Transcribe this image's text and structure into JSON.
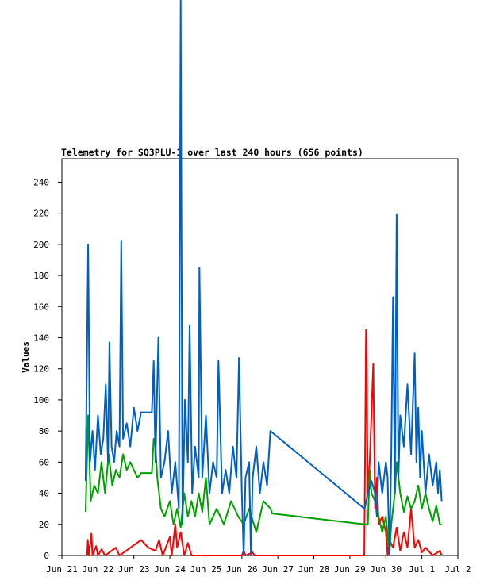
{
  "chart_data": {
    "type": "line",
    "title": "Telemetry for SQ3PLU-1 over last 240 hours (656 points)",
    "ylabel": "Values",
    "xlim": [
      0,
      11
    ],
    "xticks": [
      {
        "value": 0,
        "label": "Jun 21"
      },
      {
        "value": 1,
        "label": "Jun 22"
      },
      {
        "value": 2,
        "label": "Jun 23"
      },
      {
        "value": 3,
        "label": "Jun 24"
      },
      {
        "value": 4,
        "label": "Jun 25"
      },
      {
        "value": 5,
        "label": "Jun 26"
      },
      {
        "value": 6,
        "label": "Jun 27"
      },
      {
        "value": 7,
        "label": "Jun 28"
      },
      {
        "value": 8,
        "label": "Jun 29"
      },
      {
        "value": 9,
        "label": "Jun 30"
      },
      {
        "value": 10,
        "label": "Jul 1"
      },
      {
        "value": 11,
        "label": "Jul 2"
      }
    ],
    "ylim": [
      0,
      255
    ],
    "yticks": [
      0,
      20,
      40,
      60,
      80,
      100,
      120,
      140,
      160,
      180,
      200,
      220,
      240
    ],
    "grid": false,
    "series": [
      {
        "color": "#ff0000",
        "x": [
          0.7,
          0.72,
          0.75,
          0.82,
          0.85,
          0.95,
          1.0,
          1.1,
          1.2,
          1.5,
          1.6,
          2.2,
          2.4,
          2.6,
          2.7,
          2.8,
          3.0,
          3.05,
          3.15,
          3.2,
          3.3,
          3.4,
          3.5,
          3.6,
          5.0,
          5.05,
          5.1,
          5.3,
          5.35,
          8.4,
          8.45,
          8.5,
          8.55,
          8.65,
          8.7,
          8.75,
          8.8,
          8.9,
          9.0,
          9.05,
          9.1,
          9.2,
          9.3,
          9.4,
          9.5,
          9.6,
          9.7,
          9.8,
          9.9,
          10.0,
          10.1,
          10.3,
          10.5,
          10.55
        ],
        "values": [
          0,
          10,
          0,
          14,
          0,
          6,
          0,
          4,
          0,
          5,
          0,
          10,
          5,
          3,
          10,
          0,
          12,
          0,
          20,
          5,
          15,
          0,
          8,
          0,
          0,
          3,
          0,
          2,
          0,
          0,
          145,
          40,
          60,
          123,
          30,
          50,
          20,
          25,
          15,
          0,
          10,
          5,
          18,
          3,
          15,
          5,
          30,
          5,
          10,
          2,
          5,
          0,
          3,
          0
        ]
      },
      {
        "color": "#00a000",
        "x": [
          0.66,
          0.73,
          0.8,
          0.9,
          1.0,
          1.1,
          1.2,
          1.3,
          1.4,
          1.5,
          1.6,
          1.7,
          1.8,
          1.9,
          2.0,
          2.1,
          2.2,
          2.5,
          2.55,
          2.6,
          2.65,
          2.75,
          2.85,
          3.0,
          3.1,
          3.2,
          3.3,
          3.4,
          3.5,
          3.6,
          3.7,
          3.8,
          3.9,
          4.0,
          4.1,
          4.3,
          4.5,
          4.7,
          4.9,
          5.05,
          5.2,
          5.4,
          5.6,
          5.8,
          5.84,
          8.41,
          8.5,
          8.55,
          8.6,
          8.7,
          8.8,
          8.9,
          9.0,
          9.1,
          9.15,
          9.25,
          9.3,
          9.4,
          9.5,
          9.6,
          9.7,
          9.8,
          9.9,
          10.0,
          10.1,
          10.2,
          10.3,
          10.4,
          10.5,
          10.55
        ],
        "values": [
          28,
          90,
          35,
          45,
          40,
          60,
          40,
          65,
          45,
          55,
          50,
          65,
          55,
          60,
          55,
          50,
          53,
          53,
          75,
          70,
          50,
          30,
          25,
          35,
          20,
          30,
          18,
          40,
          25,
          35,
          25,
          40,
          28,
          50,
          20,
          30,
          20,
          35,
          25,
          20,
          30,
          15,
          35,
          30,
          27,
          20,
          20,
          55,
          40,
          35,
          25,
          15,
          25,
          0,
          20,
          40,
          60,
          40,
          28,
          38,
          30,
          35,
          45,
          30,
          40,
          30,
          22,
          32,
          20,
          20
        ]
      },
      {
        "color": "#0060c0",
        "x": [
          0.66,
          0.73,
          0.78,
          0.85,
          0.92,
          1.0,
          1.08,
          1.15,
          1.22,
          1.28,
          1.32,
          1.38,
          1.45,
          1.52,
          1.6,
          1.65,
          1.7,
          1.8,
          1.9,
          2.0,
          2.1,
          2.2,
          2.5,
          2.55,
          2.6,
          2.68,
          2.75,
          2.85,
          2.95,
          3.05,
          3.15,
          3.25,
          3.3,
          3.35,
          3.42,
          3.5,
          3.55,
          3.62,
          3.7,
          3.8,
          3.82,
          3.9,
          4.0,
          4.1,
          4.2,
          4.3,
          4.35,
          4.45,
          4.55,
          4.65,
          4.75,
          4.85,
          4.92,
          5.0,
          5.05,
          5.1,
          5.2,
          5.25,
          5.3,
          5.4,
          5.5,
          5.6,
          5.7,
          5.79,
          8.41,
          8.5,
          8.6,
          8.7,
          8.75,
          8.8,
          8.9,
          9.0,
          9.05,
          9.1,
          9.15,
          9.2,
          9.25,
          9.3,
          9.35,
          9.4,
          9.5,
          9.6,
          9.7,
          9.8,
          9.85,
          9.9,
          9.95,
          10.0,
          10.1,
          10.2,
          10.3,
          10.4,
          10.45,
          10.5,
          10.55
        ],
        "values": [
          48,
          200,
          60,
          80,
          55,
          90,
          65,
          75,
          110,
          60,
          137,
          70,
          60,
          80,
          70,
          202,
          75,
          85,
          70,
          95,
          80,
          92,
          92,
          125,
          60,
          140,
          50,
          60,
          80,
          40,
          60,
          30,
          357,
          20,
          100,
          60,
          148,
          40,
          70,
          50,
          185,
          50,
          90,
          40,
          60,
          50,
          125,
          40,
          55,
          40,
          70,
          50,
          127,
          40,
          0,
          50,
          60,
          0,
          50,
          70,
          40,
          60,
          45,
          80,
          30,
          40,
          48,
          40,
          25,
          60,
          40,
          60,
          50,
          0,
          65,
          166,
          40,
          219,
          50,
          90,
          70,
          110,
          65,
          130,
          60,
          95,
          50,
          80,
          40,
          65,
          45,
          60,
          40,
          55,
          35
        ]
      }
    ]
  }
}
